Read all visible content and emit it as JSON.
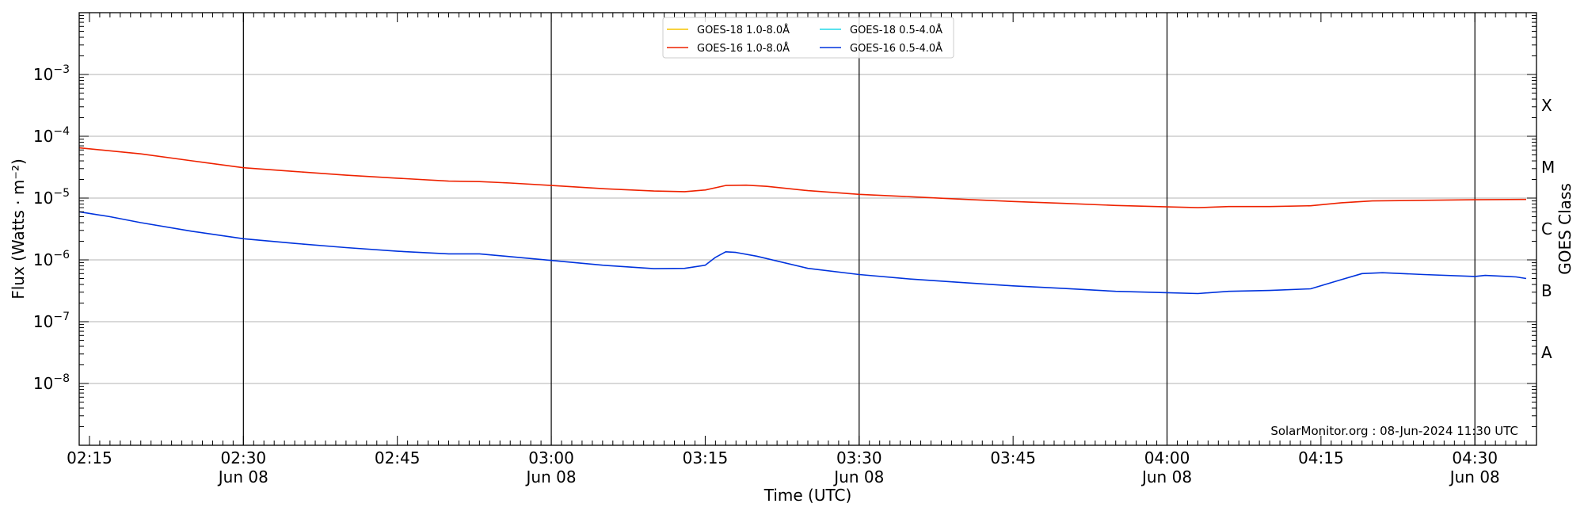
{
  "chart_data": {
    "type": "line",
    "title": "",
    "xlabel": "Time (UTC)",
    "ylabel": "Flux (Watts · m⁻²)",
    "ylabel_right": "GOES Class",
    "credit": "SolarMonitor.org : 08-Jun-2024 11:30 UTC",
    "yscale": "log",
    "ylim": [
      1e-09,
      0.01
    ],
    "xlim": [
      "02:14",
      "04:36"
    ],
    "x_ticks": [
      {
        "t": "02:15",
        "label": "02:15",
        "sub": ""
      },
      {
        "t": "02:30",
        "label": "02:30",
        "sub": "Jun 08"
      },
      {
        "t": "02:45",
        "label": "02:45",
        "sub": ""
      },
      {
        "t": "03:00",
        "label": "03:00",
        "sub": "Jun 08"
      },
      {
        "t": "03:15",
        "label": "03:15",
        "sub": ""
      },
      {
        "t": "03:30",
        "label": "03:30",
        "sub": "Jun 08"
      },
      {
        "t": "03:45",
        "label": "03:45",
        "sub": ""
      },
      {
        "t": "04:00",
        "label": "04:00",
        "sub": "Jun 08"
      },
      {
        "t": "04:15",
        "label": "04:15",
        "sub": ""
      },
      {
        "t": "04:30",
        "label": "04:30",
        "sub": "Jun 08"
      }
    ],
    "vlines": [
      "02:30",
      "03:00",
      "03:30",
      "04:00",
      "04:30"
    ],
    "y_ticks": [
      {
        "exp": -8,
        "label": "10",
        "sup": "−8"
      },
      {
        "exp": -7,
        "label": "10",
        "sup": "−7"
      },
      {
        "exp": -6,
        "label": "10",
        "sup": "−6"
      },
      {
        "exp": -5,
        "label": "10",
        "sup": "−5"
      },
      {
        "exp": -4,
        "label": "10",
        "sup": "−4"
      },
      {
        "exp": -3,
        "label": "10",
        "sup": "−3"
      }
    ],
    "hgrid": [
      -8,
      -7,
      -6,
      -5,
      -4,
      -3
    ],
    "goes_classes": [
      {
        "label": "A",
        "exp": -7.5
      },
      {
        "label": "B",
        "exp": -6.5
      },
      {
        "label": "C",
        "exp": -5.5
      },
      {
        "label": "M",
        "exp": -4.5
      },
      {
        "label": "X",
        "exp": -3.5
      }
    ],
    "legend": {
      "placement": "top-center",
      "entries": [
        {
          "name": "GOES-18 1.0-8.0Å",
          "color": "#f5c400"
        },
        {
          "name": "GOES-18 0.5-4.0Å",
          "color": "#22d8e8"
        },
        {
          "name": "GOES-16 1.0-8.0Å",
          "color": "#ee2200"
        },
        {
          "name": "GOES-16 0.5-4.0Å",
          "color": "#0033dd"
        }
      ]
    },
    "series": [
      {
        "name": "GOES-16 1.0-8.0Å",
        "color": "#ee2200",
        "points": [
          [
            "02:14",
            6.5e-05
          ],
          [
            "02:20",
            5.2e-05
          ],
          [
            "02:25",
            4e-05
          ],
          [
            "02:30",
            3.1e-05
          ],
          [
            "02:35",
            2.7e-05
          ],
          [
            "02:40",
            2.35e-05
          ],
          [
            "02:45",
            2.1e-05
          ],
          [
            "02:50",
            1.88e-05
          ],
          [
            "02:53",
            1.85e-05
          ],
          [
            "02:56",
            1.75e-05
          ],
          [
            "03:00",
            1.6e-05
          ],
          [
            "03:05",
            1.42e-05
          ],
          [
            "03:10",
            1.3e-05
          ],
          [
            "03:13",
            1.27e-05
          ],
          [
            "03:15",
            1.35e-05
          ],
          [
            "03:17",
            1.6e-05
          ],
          [
            "03:19",
            1.62e-05
          ],
          [
            "03:21",
            1.55e-05
          ],
          [
            "03:25",
            1.32e-05
          ],
          [
            "03:30",
            1.15e-05
          ],
          [
            "03:35",
            1.05e-05
          ],
          [
            "03:40",
            9.6e-06
          ],
          [
            "03:45",
            8.8e-06
          ],
          [
            "03:50",
            8.2e-06
          ],
          [
            "03:55",
            7.6e-06
          ],
          [
            "04:00",
            7.2e-06
          ],
          [
            "04:03",
            7e-06
          ],
          [
            "04:06",
            7.3e-06
          ],
          [
            "04:10",
            7.3e-06
          ],
          [
            "04:14",
            7.5e-06
          ],
          [
            "04:17",
            8.4e-06
          ],
          [
            "04:20",
            9e-06
          ],
          [
            "04:25",
            9.2e-06
          ],
          [
            "04:30",
            9.4e-06
          ],
          [
            "04:35",
            9.5e-06
          ]
        ]
      },
      {
        "name": "GOES-16 0.5-4.0Å",
        "color": "#0033dd",
        "points": [
          [
            "02:14",
            6e-06
          ],
          [
            "02:17",
            5e-06
          ],
          [
            "02:20",
            4e-06
          ],
          [
            "02:25",
            2.9e-06
          ],
          [
            "02:30",
            2.2e-06
          ],
          [
            "02:35",
            1.85e-06
          ],
          [
            "02:40",
            1.58e-06
          ],
          [
            "02:45",
            1.38e-06
          ],
          [
            "02:50",
            1.25e-06
          ],
          [
            "02:53",
            1.25e-06
          ],
          [
            "02:56",
            1.13e-06
          ],
          [
            "03:00",
            9.8e-07
          ],
          [
            "03:05",
            8.2e-07
          ],
          [
            "03:10",
            7.2e-07
          ],
          [
            "03:13",
            7.3e-07
          ],
          [
            "03:15",
            8.2e-07
          ],
          [
            "03:16",
            1.1e-06
          ],
          [
            "03:17",
            1.35e-06
          ],
          [
            "03:18",
            1.32e-06
          ],
          [
            "03:20",
            1.15e-06
          ],
          [
            "03:25",
            7.3e-07
          ],
          [
            "03:30",
            5.8e-07
          ],
          [
            "03:35",
            4.9e-07
          ],
          [
            "03:40",
            4.3e-07
          ],
          [
            "03:45",
            3.8e-07
          ],
          [
            "03:50",
            3.45e-07
          ],
          [
            "03:55",
            3.1e-07
          ],
          [
            "04:00",
            2.95e-07
          ],
          [
            "04:03",
            2.85e-07
          ],
          [
            "04:06",
            3.1e-07
          ],
          [
            "04:10",
            3.2e-07
          ],
          [
            "04:14",
            3.4e-07
          ],
          [
            "04:17",
            4.8e-07
          ],
          [
            "04:19",
            6e-07
          ],
          [
            "04:21",
            6.2e-07
          ],
          [
            "04:25",
            5.8e-07
          ],
          [
            "04:30",
            5.4e-07
          ],
          [
            "04:31",
            5.6e-07
          ],
          [
            "04:34",
            5.3e-07
          ],
          [
            "04:35",
            5e-07
          ]
        ]
      }
    ]
  }
}
